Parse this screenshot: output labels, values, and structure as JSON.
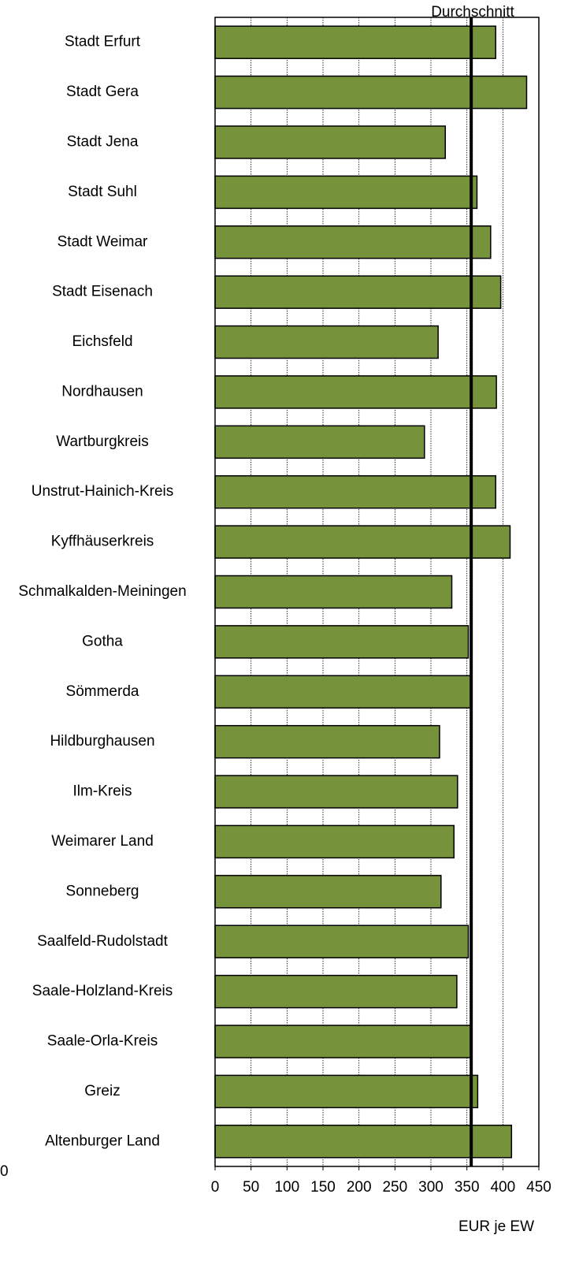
{
  "chart_data": {
    "type": "barh",
    "categories": [
      "Stadt Erfurt",
      "Stadt Gera",
      "Stadt Jena",
      "Stadt Suhl",
      "Stadt Weimar",
      "Stadt Eisenach",
      "Eichsfeld",
      "Nordhausen",
      "Wartburgkreis",
      "Unstrut-Hainich-Kreis",
      "Kyffhäuserkreis",
      "Schmalkalden-Meiningen",
      "Gotha",
      "Sömmerda",
      "Hildburghausen",
      "Ilm-Kreis",
      "Weimarer Land",
      "Sonneberg",
      "Saalfeld-Rudolstadt",
      "Saale-Holzland-Kreis",
      "Saale-Orla-Kreis",
      "Greiz",
      "Altenburger Land"
    ],
    "values": [
      390,
      433,
      320,
      364,
      383,
      397,
      310,
      391,
      291,
      390,
      410,
      329,
      352,
      355,
      312,
      337,
      332,
      314,
      352,
      336,
      355,
      365,
      412
    ],
    "color": "#76933c",
    "xlim": [
      0,
      450
    ],
    "xticks": [
      0,
      50,
      100,
      150,
      200,
      250,
      300,
      350,
      400,
      450
    ],
    "xlabel": "EUR je EW",
    "grid": true,
    "reference_line": {
      "label": "Durchschnitt",
      "value": 356
    },
    "stray_label": "0"
  }
}
